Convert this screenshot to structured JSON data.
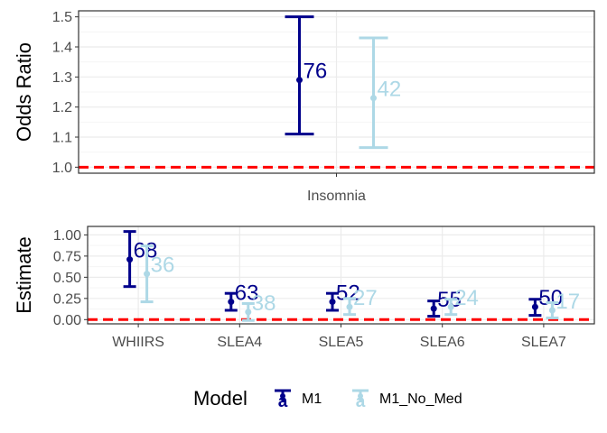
{
  "chart_data": [
    {
      "type": "errorbar",
      "ylabel": "Odds Ratio",
      "categories": [
        "Insomnia"
      ],
      "ylim": [
        0.98,
        1.52
      ],
      "yticks": [
        "1.0",
        "1.1",
        "1.2",
        "1.3",
        "1.4",
        "1.5"
      ],
      "reference_line": 1.0,
      "series": [
        {
          "name": "M1",
          "color": "#00008B",
          "points": [
            {
              "category": "Insomnia",
              "estimate": 1.29,
              "lower": 1.11,
              "upper": 1.5,
              "label": "76"
            }
          ]
        },
        {
          "name": "M1_No_Med",
          "color": "#ADD8E6",
          "points": [
            {
              "category": "Insomnia",
              "estimate": 1.23,
              "lower": 1.065,
              "upper": 1.43,
              "label": "42"
            }
          ]
        }
      ]
    },
    {
      "type": "errorbar",
      "ylabel": "Estimate",
      "categories": [
        "WHIIRS",
        "SLEA4",
        "SLEA5",
        "SLEA6",
        "SLEA7"
      ],
      "ylim": [
        -0.05,
        1.1
      ],
      "yticks": [
        "0.00",
        "0.25",
        "0.50",
        "0.75",
        "1.00"
      ],
      "reference_line": 0.0,
      "series": [
        {
          "name": "M1",
          "color": "#00008B",
          "points": [
            {
              "category": "WHIIRS",
              "estimate": 0.71,
              "lower": 0.39,
              "upper": 1.04,
              "label": "68"
            },
            {
              "category": "SLEA4",
              "estimate": 0.21,
              "lower": 0.11,
              "upper": 0.31,
              "label": "63"
            },
            {
              "category": "SLEA5",
              "estimate": 0.21,
              "lower": 0.11,
              "upper": 0.31,
              "label": "52"
            },
            {
              "category": "SLEA6",
              "estimate": 0.13,
              "lower": 0.04,
              "upper": 0.22,
              "label": "55"
            },
            {
              "category": "SLEA7",
              "estimate": 0.15,
              "lower": 0.05,
              "upper": 0.24,
              "label": "50"
            }
          ]
        },
        {
          "name": "M1_No_Med",
          "color": "#ADD8E6",
          "points": [
            {
              "category": "WHIIRS",
              "estimate": 0.54,
              "lower": 0.21,
              "upper": 0.87,
              "label": "36"
            },
            {
              "category": "SLEA4",
              "estimate": 0.09,
              "lower": -0.01,
              "upper": 0.19,
              "label": "38"
            },
            {
              "category": "SLEA5",
              "estimate": 0.15,
              "lower": 0.06,
              "upper": 0.25,
              "label": "27"
            },
            {
              "category": "SLEA6",
              "estimate": 0.15,
              "lower": 0.06,
              "upper": 0.24,
              "label": "24"
            },
            {
              "category": "SLEA7",
              "estimate": 0.11,
              "lower": 0.02,
              "upper": 0.2,
              "label": "17"
            }
          ]
        }
      ]
    }
  ],
  "legend": {
    "title": "Model",
    "placement": "bottom",
    "key_glyph": "a",
    "items": [
      {
        "name": "M1",
        "color": "#00008B"
      },
      {
        "name": "M1_No_Med",
        "color": "#ADD8E6"
      }
    ]
  },
  "colors": {
    "reference_line": "#FF0000",
    "panel_border": "#333333",
    "grid_major": "#EBEBEB",
    "grid_minor": "#F5F5F5"
  }
}
